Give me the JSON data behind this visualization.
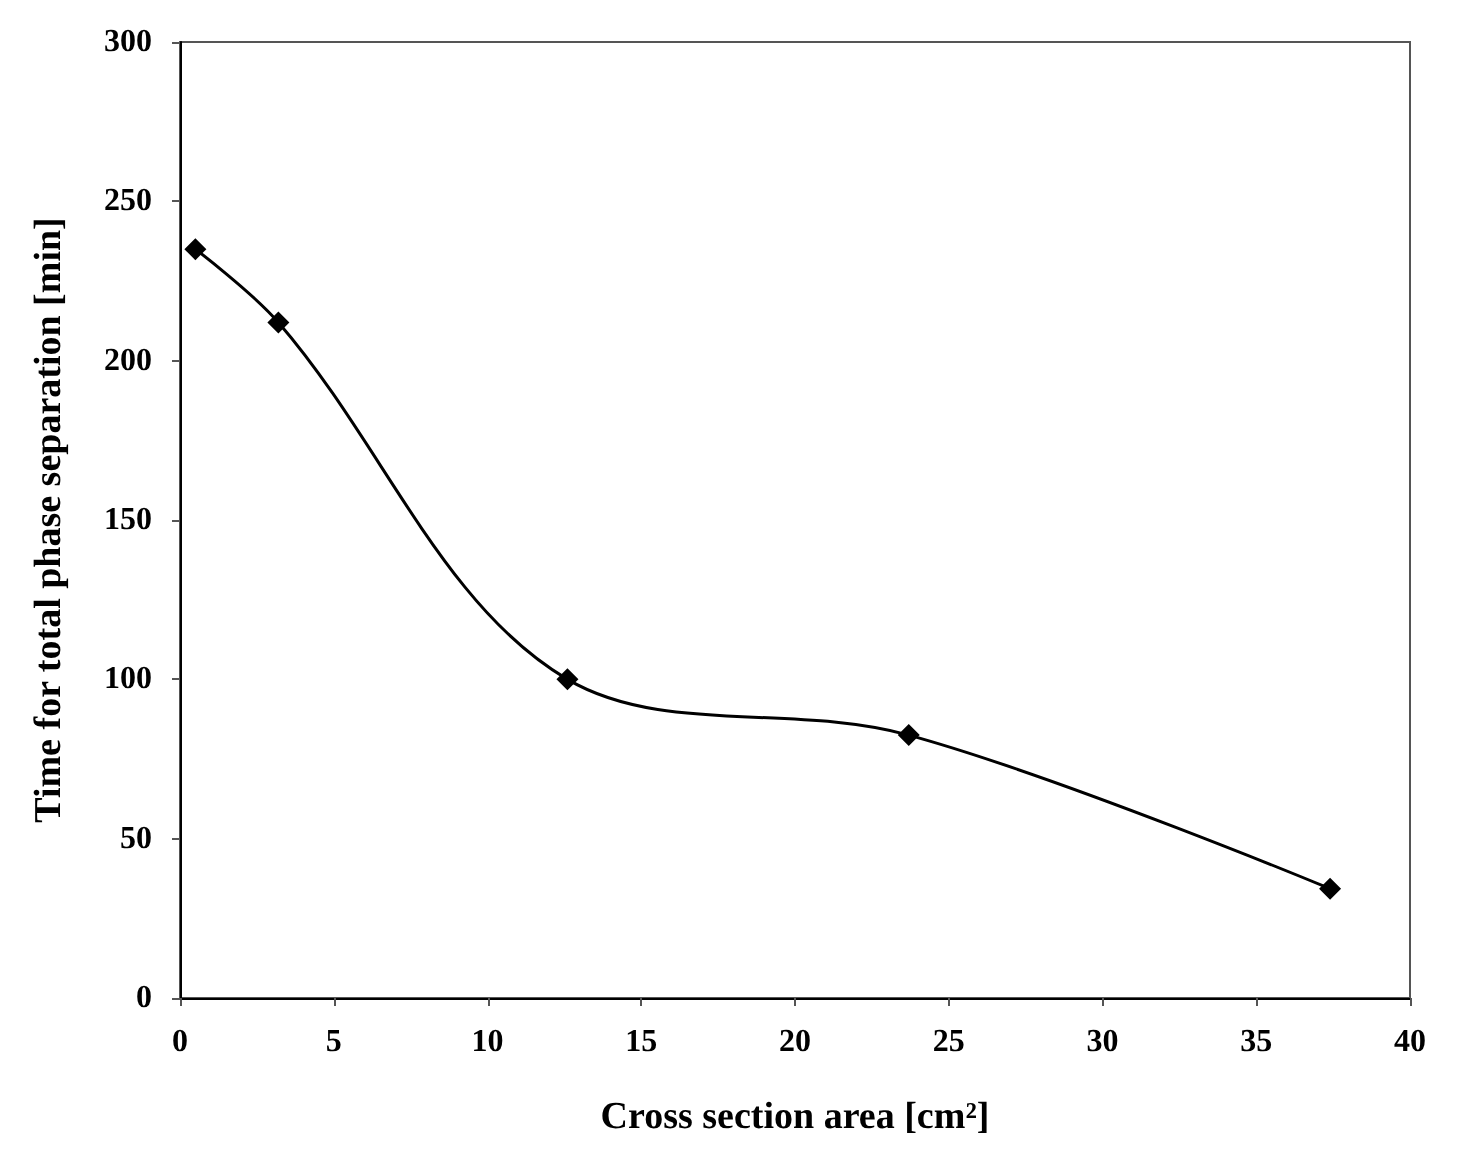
{
  "chart_data": {
    "type": "line",
    "xlabel": "Cross section area [cm²]",
    "ylabel": "Time for total phase separation [min]",
    "x": [
      0.5,
      3.2,
      12.6,
      23.7,
      37.4
    ],
    "series": [
      {
        "color": "#000000",
        "values": [
          235,
          212,
          100,
          82.5,
          34.3
        ]
      }
    ],
    "xlim": [
      0,
      40
    ],
    "xticks": [
      0,
      5,
      10,
      15,
      20,
      25,
      30,
      35,
      40
    ],
    "ylim": [
      0,
      300
    ],
    "yticks": [
      0,
      50,
      100,
      150,
      200,
      250,
      300
    ],
    "grid": false,
    "marker": "diamond",
    "line_style": "solid"
  }
}
